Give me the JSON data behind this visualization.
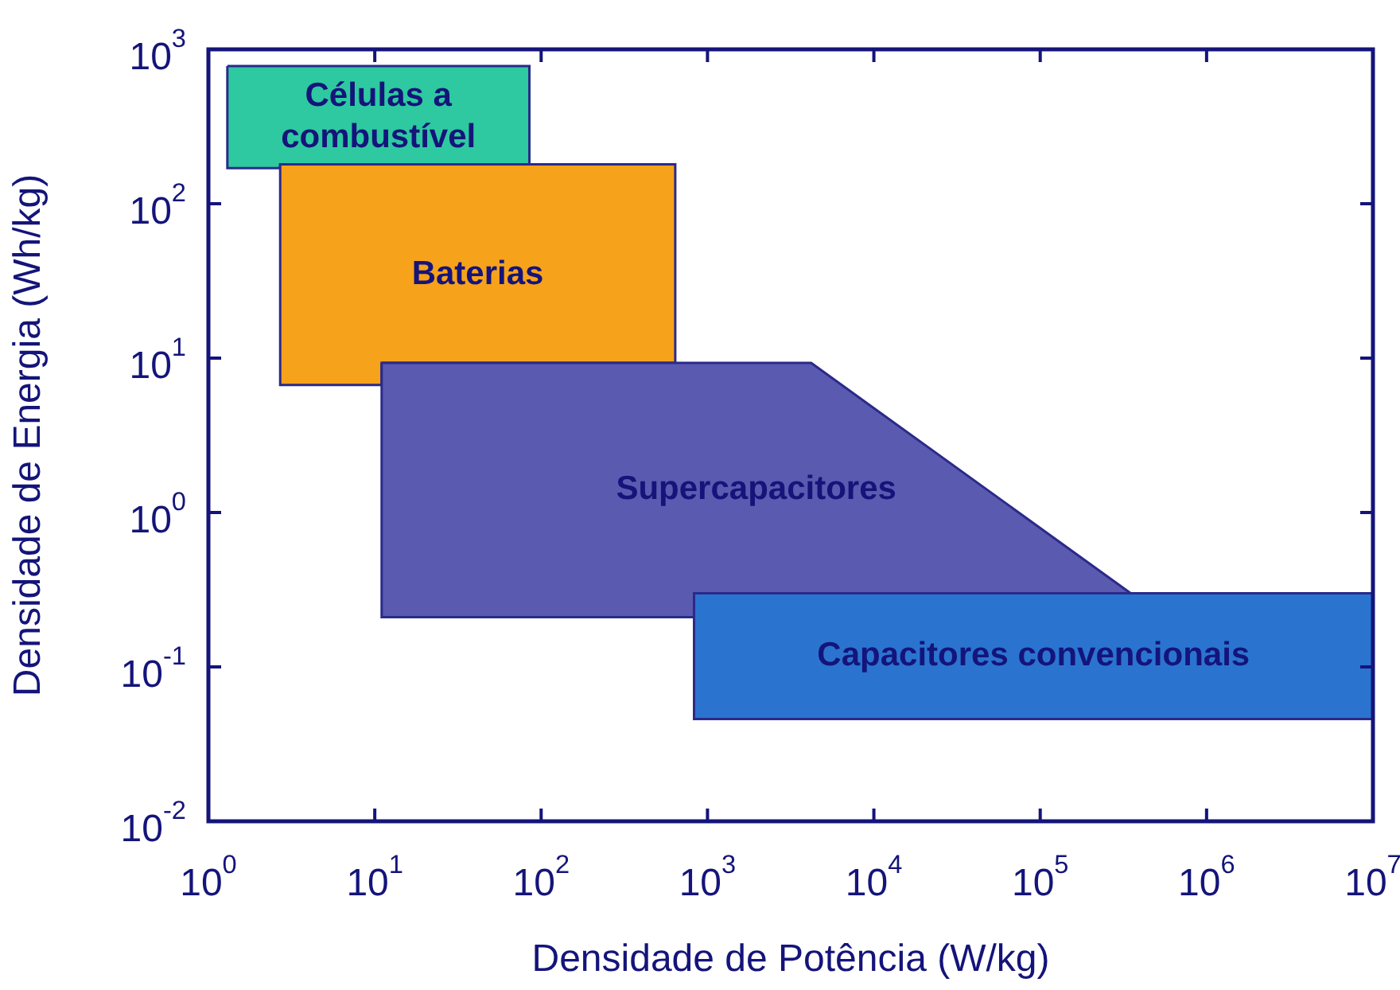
{
  "chart_data": {
    "type": "area",
    "xlabel": "Densidade de Potência (W/kg)",
    "ylabel": "Densidade de Energia (Wh/kg)",
    "log": "xy",
    "grid": false,
    "legend": false,
    "xlim": [
      1,
      10000000
    ],
    "ylim": [
      0.01,
      1000
    ],
    "xticks": [
      {
        "value": 1,
        "label": "10$^{0}$"
      },
      {
        "value": 10,
        "label": "10$^{1}$"
      },
      {
        "value": 100,
        "label": "10$^{2}$"
      },
      {
        "value": 1000,
        "label": "10$^{3}$"
      },
      {
        "value": 10000,
        "label": "10$^{4}$"
      },
      {
        "value": 100000,
        "label": "10$^{5}$"
      },
      {
        "value": 1000000,
        "label": "10$^{6}$"
      },
      {
        "value": 10000000,
        "label": "10$^{7}$"
      }
    ],
    "yticks": [
      {
        "value": 0.01,
        "label": "10$^{-2}$"
      },
      {
        "value": 0.1,
        "label": "10$^{-1}$"
      },
      {
        "value": 1,
        "label": "10$^{0}$"
      },
      {
        "value": 10,
        "label": "10$^{1}$"
      },
      {
        "value": 100,
        "label": "10$^{2}$"
      },
      {
        "value": 1000,
        "label": "10$^{3}$"
      }
    ],
    "series": [
      {
        "name": "Células a combustível",
        "color": "#2ec9a0",
        "x": [
          1.3,
          85,
          85,
          2.7,
          2.7,
          1.3
        ],
        "values": [
          780,
          780,
          180,
          180,
          170,
          170
        ]
      },
      {
        "name": "Baterias",
        "color": "#f7a21b",
        "x": [
          2.7,
          640,
          640,
          11,
          11,
          2.7
        ],
        "values": [
          180,
          180,
          9.3,
          9.3,
          6.7,
          6.7
        ]
      },
      {
        "name": "Supercapacitores",
        "color": "#5a5ab0",
        "x": [
          11,
          4200,
          350000,
          830,
          830,
          11
        ],
        "values": [
          9.3,
          9.3,
          0.3,
          0.3,
          0.21,
          0.21
        ]
      },
      {
        "name": "Capacitores convencionais",
        "color": "#2a74d0",
        "x": [
          830,
          10000000,
          10000000,
          830
        ],
        "values": [
          0.3,
          0.3,
          0.046,
          0.046
        ]
      }
    ]
  }
}
